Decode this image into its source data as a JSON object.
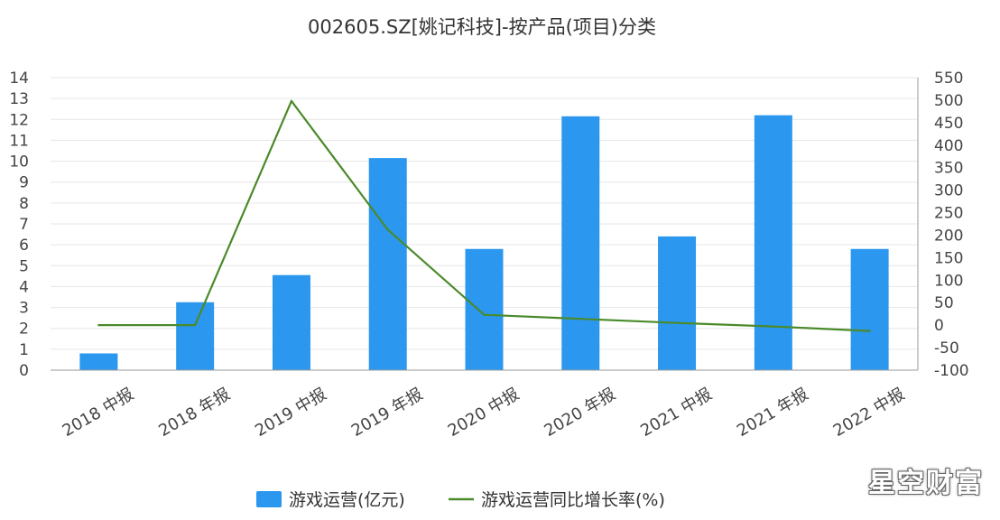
{
  "chart_data": {
    "type": "bar",
    "title": "002605.SZ[姚记科技]-按产品(项目)分类",
    "categories": [
      "2018 中报",
      "2018 年报",
      "2019 中报",
      "2019 年报",
      "2020 中报",
      "2020 年报",
      "2021 中报",
      "2021 年报",
      "2022 中报"
    ],
    "series": [
      {
        "name": "游戏运营(亿元)",
        "type": "bar",
        "axis": "left",
        "color": "#2b97ef",
        "values": [
          0.8,
          3.25,
          4.55,
          10.15,
          5.8,
          12.15,
          6.4,
          12.2,
          5.8
        ]
      },
      {
        "name": "游戏运营同比增长率(%)",
        "type": "line",
        "axis": "right",
        "color": "#4a8a2a",
        "values": [
          0,
          0,
          498,
          212,
          23,
          14,
          5,
          -3,
          -13
        ]
      }
    ],
    "left_axis": {
      "min": 0,
      "max": 14,
      "ticks": [
        "0",
        "1",
        "2",
        "3",
        "4",
        "5",
        "6",
        "7",
        "8",
        "9",
        "10",
        "11",
        "12",
        "13",
        "14"
      ]
    },
    "right_axis": {
      "min": -100,
      "max": 550,
      "ticks": [
        "-100",
        "-50",
        "0",
        "50",
        "100",
        "150",
        "200",
        "250",
        "300",
        "350",
        "400",
        "450",
        "500",
        "550"
      ]
    },
    "grid": true,
    "legend_position": "bottom"
  },
  "watermark": "星空财富"
}
